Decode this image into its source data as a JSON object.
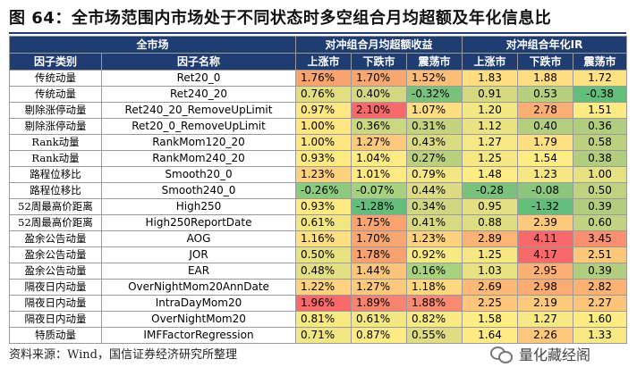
{
  "title": "图 64：全市场范围内市场处于不同状态时多空组合月均超额及年化信息比",
  "header": {
    "universe": "全市场",
    "group1": "对冲组合月均超额收益",
    "group2": "对冲组合年化IR",
    "col_cat": "因子类别",
    "col_name": "因子名称",
    "states": [
      "上涨市",
      "下跌市",
      "震荡市"
    ]
  },
  "rows": [
    {
      "cat": "传统动量",
      "name": "Ret20_0",
      "e": [
        "1.76%",
        "1.70%",
        "1.52%"
      ],
      "ir": [
        "1.83",
        "1.88",
        "1.72"
      ]
    },
    {
      "cat": "传统动量",
      "name": "Ret240_20",
      "e": [
        "0.76%",
        "0.40%",
        "-0.32%"
      ],
      "ir": [
        "0.91",
        "0.53",
        "-0.38"
      ]
    },
    {
      "cat": "剔除涨停动量",
      "name": "Ret240_20_RemoveUpLimit",
      "e": [
        "0.97%",
        "2.10%",
        "1.07%"
      ],
      "ir": [
        "1.20",
        "2.78",
        "1.51"
      ]
    },
    {
      "cat": "剔除涨停动量",
      "name": "Ret20_0_RemoveUpLimit",
      "e": [
        "1.00%",
        "0.36%",
        "0.31%"
      ],
      "ir": [
        "1.12",
        "0.40",
        "0.36"
      ]
    },
    {
      "cat": "Rank动量",
      "name": "RankMom120_20",
      "e": [
        "1.00%",
        "1.27%",
        "0.43%"
      ],
      "ir": [
        "1.27",
        "1.79",
        "0.58"
      ]
    },
    {
      "cat": "Rank动量",
      "name": "RankMom240_20",
      "e": [
        "0.93%",
        "1.04%",
        "0.27%"
      ],
      "ir": [
        "1.25",
        "1.54",
        "0.38"
      ]
    },
    {
      "cat": "路程位移比",
      "name": "Smooth20_0",
      "e": [
        "1.23%",
        "1.01%",
        "0.79%"
      ],
      "ir": [
        "1.48",
        "1.23",
        "1.00"
      ]
    },
    {
      "cat": "路程位移比",
      "name": "Smooth240_0",
      "e": [
        "-0.26%",
        "-0.07%",
        "0.44%"
      ],
      "ir": [
        "-0.28",
        "-0.08",
        "0.50"
      ]
    },
    {
      "cat": "52周最高价距离",
      "name": "High250",
      "e": [
        "0.93%",
        "-1.28%",
        "0.34%"
      ],
      "ir": [
        "0.95",
        "-1.32",
        "0.39"
      ]
    },
    {
      "cat": "52周最高价距离",
      "name": "High250ReportDate",
      "e": [
        "0.61%",
        "1.75%",
        "0.41%"
      ],
      "ir": [
        "0.88",
        "2.39",
        "0.60"
      ]
    },
    {
      "cat": "盈余公告动量",
      "name": "AOG",
      "e": [
        "1.16%",
        "1.70%",
        "1.23%"
      ],
      "ir": [
        "2.89",
        "4.11",
        "3.45"
      ]
    },
    {
      "cat": "盈余公告动量",
      "name": "JOR",
      "e": [
        "0.50%",
        "1.78%",
        "0.92%"
      ],
      "ir": [
        "1.25",
        "4.17",
        "2.51"
      ]
    },
    {
      "cat": "盈余公告动量",
      "name": "EAR",
      "e": [
        "0.48%",
        "1.44%",
        "0.16%"
      ],
      "ir": [
        "1.03",
        "2.95",
        "0.39"
      ]
    },
    {
      "cat": "隔夜日内动量",
      "name": "OverNightMom20AnnDate",
      "e": [
        "1.22%",
        "1.27%",
        "1.18%"
      ],
      "ir": [
        "2.69",
        "2.98",
        "2.82"
      ]
    },
    {
      "cat": "隔夜日内动量",
      "name": "IntraDayMom20",
      "e": [
        "1.96%",
        "1.89%",
        "1.88%"
      ],
      "ir": [
        "2.25",
        "2.19",
        "2.27"
      ]
    },
    {
      "cat": "隔夜日内动量",
      "name": "OverNightMom20",
      "e": [
        "0.81%",
        "0.61%",
        "0.82%"
      ],
      "ir": [
        "1.58",
        "1.27",
        "1.60"
      ]
    },
    {
      "cat": "特质动量",
      "name": "IMFFactorRegression",
      "e": [
        "0.71%",
        "0.87%",
        "0.55%"
      ],
      "ir": [
        "1.64",
        "2.26",
        "1.33"
      ]
    }
  ],
  "colors": {
    "excess": [
      [
        "#f9a46e",
        "#f9a770",
        "#fbbe79"
      ],
      [
        "#e4de83",
        "#d4d882",
        "#7ac27b"
      ],
      [
        "#fde883",
        "#f8696b",
        "#ffde81"
      ],
      [
        "#fee682",
        "#cdd681",
        "#c5d380"
      ],
      [
        "#fee682",
        "#fdc97c",
        "#dbdb83"
      ],
      [
        "#ffe983",
        "#feeb84",
        "#b9d07f"
      ],
      [
        "#fed17f",
        "#fee983",
        "#f3e784"
      ],
      [
        "#8ccb7e",
        "#a6d17f",
        "#dcdb83"
      ],
      [
        "#ffe983",
        "#63be7b",
        "#d0d782"
      ],
      [
        "#f3e784",
        "#f9a470",
        "#d7da82"
      ],
      [
        "#fedf82",
        "#f9a770",
        "#fed17f"
      ],
      [
        "#e7e282",
        "#f9a06f",
        "#f7e984"
      ],
      [
        "#e3df83",
        "#fdc57b",
        "#a9d27f"
      ],
      [
        "#fed27f",
        "#fdc97c",
        "#fed880"
      ],
      [
        "#f8696b",
        "#f98370",
        "#fa8a72"
      ],
      [
        "#f8e984",
        "#f3e784",
        "#f8e984"
      ],
      [
        "#f0e684",
        "#ffeb84",
        "#dfdc83"
      ]
    ],
    "ir": [
      [
        "#ffdd81",
        "#fedc81",
        "#fee182"
      ],
      [
        "#d6d981",
        "#b6cf7f",
        "#63be7b"
      ],
      [
        "#f3e784",
        "#fcaf74",
        "#ffea84"
      ],
      [
        "#eae384",
        "#b4ce7f",
        "#b1cd7e"
      ],
      [
        "#f6e884",
        "#fedf82",
        "#bcd17f"
      ],
      [
        "#f4e784",
        "#ffec84",
        "#b2cd7e"
      ],
      [
        "#ffec84",
        "#f5e884",
        "#e6e183"
      ],
      [
        "#7ac27b",
        "#8ac77c",
        "#c0d280"
      ],
      [
        "#e3df83",
        "#63be7b",
        "#b3cd7e"
      ],
      [
        "#dedd83",
        "#fdc97c",
        "#c1d280"
      ],
      [
        "#fcb376",
        "#f8696b",
        "#fa8f72"
      ],
      [
        "#f4e784",
        "#f8696b",
        "#fdc67b"
      ],
      [
        "#e9e283",
        "#fcb075",
        "#b3cd7e"
      ],
      [
        "#fcb876",
        "#fcab73",
        "#fcb175"
      ],
      [
        "#fec57b",
        "#fdc97c",
        "#fdc47b"
      ],
      [
        "#feec84",
        "#f6e884",
        "#feeb84"
      ],
      [
        "#ffea84",
        "#fdc87c",
        "#f8e984"
      ]
    ]
  },
  "footer": "资料来源：Wind，国信证券经济研究所整理",
  "brand": "量化藏经阁"
}
